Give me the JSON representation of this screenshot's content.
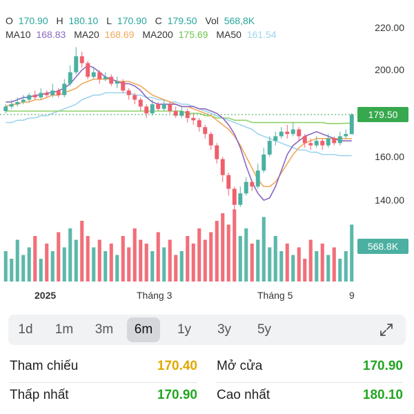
{
  "legend": {
    "o_label": "O",
    "o": "170.90",
    "h_label": "H",
    "h": "180.10",
    "l_label": "L",
    "l": "170.90",
    "c_label": "C",
    "c": "179.50",
    "vol_label": "Vol",
    "vol": "568,8K",
    "ma10_label": "MA10",
    "ma10": "168.83",
    "ma20_label": "MA20",
    "ma20": "168.69",
    "ma200_label": "MA200",
    "ma200": "175.69",
    "ma50_label": "MA50",
    "ma50": "161.54"
  },
  "colors": {
    "ma10": "#8a66c2",
    "ma20": "#f0a85a",
    "ma200": "#8fd16a",
    "ma50": "#9ed3ef",
    "up": "#4bb0a1",
    "down": "#ef5f6c",
    "price_badge": "#37a84e",
    "vol_badge": "#4bb0a1",
    "o_val": "#26a69a",
    "ref_val": "#e0a800",
    "green_val": "#22a522"
  },
  "chart_data": {
    "type": "candlestick",
    "y_ticks": [
      "220.00",
      "200.00",
      "160.00",
      "140.00"
    ],
    "ylim": [
      133,
      226
    ],
    "x_ticks": [
      "2025",
      "Tháng 3",
      "Tháng 5",
      "9"
    ],
    "last_price_label": "179.50",
    "last_volume_label": "568.8K",
    "ma10": [
      185,
      185,
      186,
      187,
      187,
      188,
      188,
      189,
      189,
      190,
      191,
      193,
      196,
      199,
      201,
      200,
      198,
      196,
      195,
      194,
      193,
      193,
      192,
      190,
      187,
      185,
      184,
      184,
      184,
      184,
      183,
      183,
      183,
      182,
      182,
      181,
      180,
      178,
      175,
      171,
      165,
      157,
      150,
      145,
      142,
      143,
      148,
      155,
      162,
      166,
      168,
      170,
      171,
      172,
      171,
      170,
      169,
      168,
      168,
      168
    ],
    "ma20": [
      183,
      184,
      184,
      185,
      185,
      186,
      186,
      187,
      188,
      188,
      189,
      190,
      191,
      193,
      194,
      195,
      195,
      195,
      195,
      194,
      194,
      194,
      193,
      192,
      190,
      188,
      187,
      186,
      185,
      184,
      183,
      183,
      182,
      181,
      180,
      179,
      177,
      175,
      173,
      170,
      166,
      161,
      156,
      151,
      148,
      148,
      150,
      154,
      158,
      162,
      165,
      167,
      168,
      169,
      169,
      169,
      169,
      169,
      169,
      169
    ],
    "ma200": [
      181,
      181,
      181,
      181,
      181,
      181,
      181,
      181,
      181,
      181,
      181,
      181,
      181,
      181,
      181,
      181,
      181,
      181,
      181,
      181,
      181,
      181,
      181,
      181,
      181,
      181,
      181,
      181,
      181,
      181,
      181,
      180,
      180,
      180,
      179,
      179,
      178,
      178,
      178,
      177,
      177,
      177,
      176,
      176,
      176,
      176,
      176,
      176,
      176,
      176,
      176,
      176,
      176,
      176,
      176,
      175.5,
      175.5,
      175.5,
      175.7,
      175.7
    ],
    "ma50": [
      176,
      176,
      177,
      177,
      178,
      178,
      179,
      179,
      180,
      181,
      182,
      183,
      184,
      186,
      187,
      188,
      188,
      189,
      189,
      189,
      189,
      189,
      188,
      188,
      187,
      187,
      186,
      186,
      185,
      185,
      184,
      184,
      183,
      182,
      181,
      180,
      179,
      178,
      177,
      176,
      175,
      174,
      173,
      171,
      170,
      169,
      168,
      167,
      166,
      165,
      164,
      164,
      163,
      163,
      162,
      162,
      162,
      161.5,
      161.5,
      161.5
    ],
    "candles": [
      [
        181,
        183,
        180,
        184
      ],
      [
        183,
        184,
        182,
        186
      ],
      [
        184,
        185,
        183,
        187
      ],
      [
        185,
        186,
        184,
        188
      ],
      [
        186,
        188,
        185,
        189
      ],
      [
        188,
        187,
        186,
        190
      ],
      [
        187,
        189,
        186,
        191
      ],
      [
        189,
        188,
        187,
        190
      ],
      [
        188,
        190,
        187,
        193
      ],
      [
        190,
        188,
        187,
        191
      ],
      [
        188,
        193,
        187,
        195
      ],
      [
        193,
        198,
        192,
        201
      ],
      [
        198,
        205,
        197,
        209
      ],
      [
        205,
        202,
        200,
        207
      ],
      [
        202,
        196,
        195,
        203
      ],
      [
        196,
        198,
        195,
        200
      ],
      [
        198,
        195,
        193,
        199
      ],
      [
        195,
        196,
        194,
        198
      ],
      [
        196,
        193,
        192,
        197
      ],
      [
        193,
        194,
        191,
        196
      ],
      [
        194,
        190,
        189,
        195
      ],
      [
        190,
        188,
        186,
        191
      ],
      [
        188,
        186,
        184,
        189
      ],
      [
        186,
        183,
        181,
        187
      ],
      [
        183,
        180,
        178,
        184
      ],
      [
        180,
        184,
        179,
        186
      ],
      [
        184,
        182,
        181,
        185
      ],
      [
        182,
        184,
        181,
        186
      ],
      [
        184,
        181,
        180,
        185
      ],
      [
        181,
        179,
        178,
        183
      ],
      [
        179,
        181,
        178,
        183
      ],
      [
        181,
        178,
        176,
        182
      ],
      [
        178,
        177,
        175,
        180
      ],
      [
        177,
        174,
        172,
        178
      ],
      [
        174,
        171,
        169,
        175
      ],
      [
        171,
        166,
        164,
        172
      ],
      [
        166,
        160,
        158,
        167
      ],
      [
        160,
        153,
        150,
        161
      ],
      [
        153,
        147,
        144,
        154
      ],
      [
        147,
        140,
        137,
        148
      ],
      [
        140,
        145,
        139,
        148
      ],
      [
        145,
        150,
        144,
        152
      ],
      [
        150,
        148,
        146,
        151
      ],
      [
        148,
        155,
        147,
        158
      ],
      [
        155,
        162,
        154,
        165
      ],
      [
        162,
        168,
        161,
        170
      ],
      [
        168,
        170,
        166,
        172
      ],
      [
        170,
        172,
        169,
        174
      ],
      [
        172,
        171,
        169,
        175
      ],
      [
        171,
        173,
        170,
        176
      ],
      [
        173,
        170,
        168,
        174
      ],
      [
        170,
        167,
        165,
        171
      ],
      [
        167,
        166,
        164,
        169
      ],
      [
        166,
        168,
        165,
        170
      ],
      [
        168,
        166,
        164,
        169
      ],
      [
        166,
        169,
        165,
        171
      ],
      [
        169,
        167,
        166,
        170
      ],
      [
        167,
        170,
        166,
        172
      ],
      [
        170,
        171,
        169,
        173
      ],
      [
        170.9,
        179.5,
        170.9,
        180.1
      ]
    ],
    "volumes": [
      40,
      30,
      55,
      35,
      45,
      60,
      30,
      50,
      40,
      65,
      45,
      70,
      55,
      80,
      60,
      45,
      55,
      40,
      50,
      35,
      60,
      45,
      70,
      55,
      50,
      40,
      65,
      45,
      55,
      35,
      40,
      60,
      50,
      70,
      55,
      65,
      80,
      90,
      75,
      95,
      60,
      70,
      50,
      55,
      85,
      45,
      60,
      40,
      50,
      35,
      45,
      30,
      55,
      40,
      50,
      35,
      45,
      30,
      40,
      75
    ]
  },
  "periods": [
    "1d",
    "1m",
    "3m",
    "6m",
    "1y",
    "3y",
    "5y"
  ],
  "active_period": "6m",
  "stats": {
    "ref_label": "Tham chiếu",
    "ref_value": "170.40",
    "open_label": "Mở cửa",
    "open_value": "170.90",
    "low_label": "Thấp nhất",
    "low_value": "170.90",
    "high_label": "Cao nhất",
    "high_value": "180.10"
  }
}
